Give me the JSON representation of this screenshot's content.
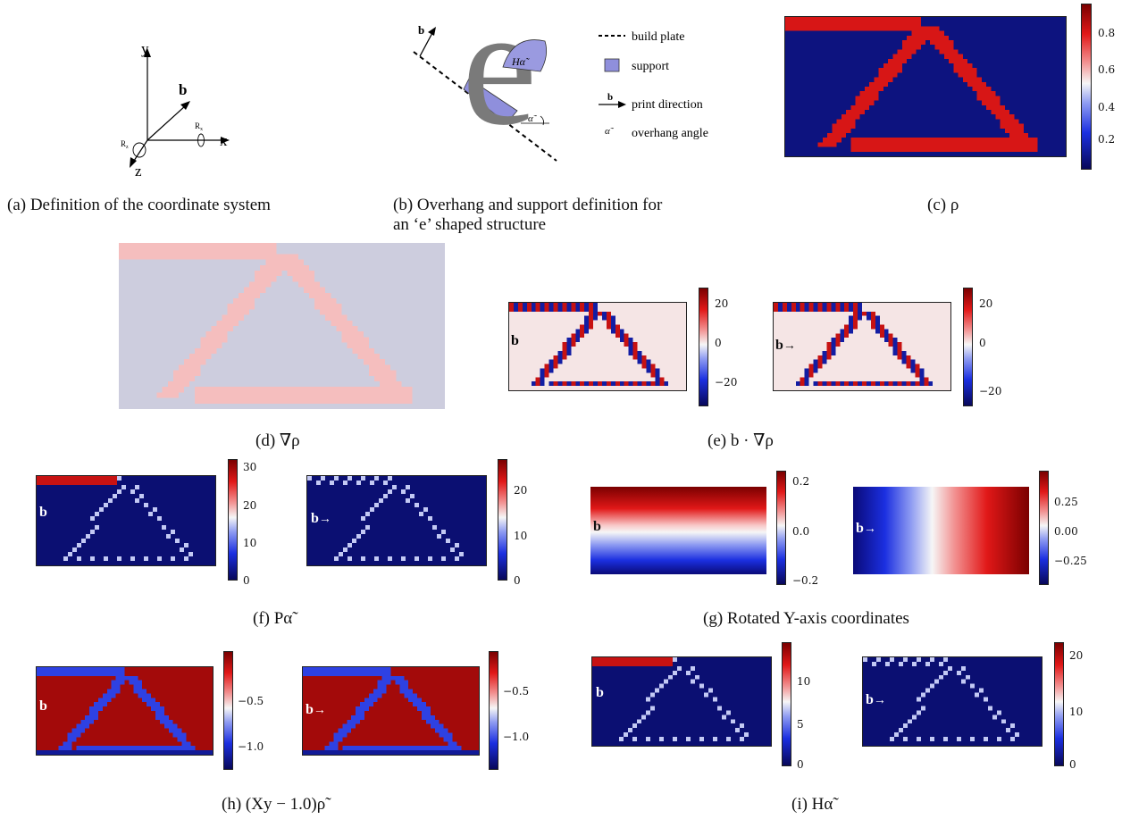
{
  "figure": {
    "panel_a": {
      "caption": "(a) Definition of the coordinate system",
      "axis_y": "y",
      "axis_x": "x",
      "axis_z": "z",
      "vector_b": "b",
      "rot_x": "R",
      "rot_x_sub": "x",
      "rot_z": "R",
      "rot_z_sub": "z"
    },
    "panel_b": {
      "caption_line1": "(b) Overhang and support definition for",
      "caption_line2": "an ‘e’ shaped structure",
      "vector_b": "b",
      "overhang_label": "Hα̃",
      "angle_label": "α̃",
      "legend": [
        {
          "symbol": "dashed-line",
          "label": "build plate"
        },
        {
          "symbol": "support-box",
          "label": "support"
        },
        {
          "symbol": "arrow",
          "label": "print direction"
        },
        {
          "symbol": "alpha",
          "label": "overhang angle"
        }
      ]
    },
    "panel_c": {
      "caption": "(c) ρ",
      "colorbar_ticks": [
        "0.8",
        "0.6",
        "0.4",
        "0.2"
      ]
    },
    "panel_d": {
      "caption": "(d) ∇ρ"
    },
    "panel_e": {
      "caption": "(e) b · ∇ρ",
      "left": {
        "direction": "b",
        "ticks": [
          "20",
          "0",
          "−20"
        ]
      },
      "right": {
        "direction": "b",
        "ticks": [
          "20",
          "0",
          "−20"
        ]
      }
    },
    "panel_f": {
      "caption": "(f) Pα̃",
      "left": {
        "direction": "b",
        "ticks": [
          "30",
          "20",
          "10",
          "0"
        ]
      },
      "right": {
        "direction": "b",
        "ticks": [
          "20",
          "10",
          "0"
        ]
      }
    },
    "panel_g": {
      "caption": "(g) Rotated Y-axis coordinates",
      "left": {
        "direction": "b",
        "ticks": [
          "0.2",
          "0.0",
          "−0.2"
        ]
      },
      "right": {
        "direction": "b",
        "ticks": [
          "0.25",
          "0.00",
          "−0.25"
        ]
      }
    },
    "panel_h": {
      "caption": "(h) (Xy − 1.0)ρ̃",
      "left": {
        "direction": "b",
        "ticks": [
          "−0.5",
          "−1.0"
        ]
      },
      "right": {
        "direction": "b",
        "ticks": [
          "−0.5",
          "−1.0"
        ]
      }
    },
    "panel_i": {
      "caption": "(i) Hα̃",
      "left": {
        "direction": "b",
        "ticks": [
          "10",
          "5",
          "0"
        ]
      },
      "right": {
        "direction": "b",
        "ticks": [
          "20",
          "10",
          "0"
        ]
      }
    }
  }
}
